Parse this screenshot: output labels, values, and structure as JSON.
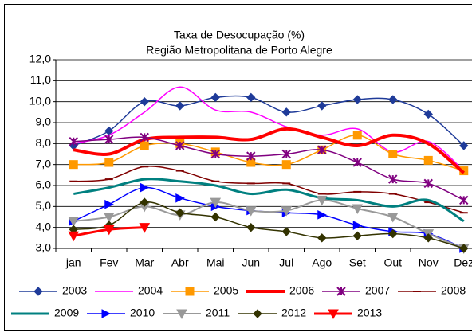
{
  "chart_data": {
    "type": "line",
    "title": "Taxa de Desocupação (%)",
    "subtitle": "Região Metropolitana de Porto Alegre",
    "categories": [
      "jan",
      "Fev",
      "Mar",
      "Abr",
      "Mai",
      "Jun",
      "Jul",
      "Ago",
      "Set",
      "Out",
      "Nov",
      "Dez"
    ],
    "ylim": [
      3,
      12
    ],
    "yticks": [
      {
        "value": 3,
        "label": "3,0"
      },
      {
        "value": 4,
        "label": "4,0"
      },
      {
        "value": 5,
        "label": "5,0"
      },
      {
        "value": 6,
        "label": "6,0"
      },
      {
        "value": 7,
        "label": "7,0"
      },
      {
        "value": 8,
        "label": "8,0"
      },
      {
        "value": 9,
        "label": "9,0"
      },
      {
        "value": 10,
        "label": "10,0"
      },
      {
        "value": 11,
        "label": "11,0"
      },
      {
        "value": 12,
        "label": "12,0"
      }
    ],
    "grid": true,
    "legend": "bottom",
    "series": [
      {
        "name": "2003",
        "color": "#1f3b99",
        "marker": "diamond",
        "line_width": 1.5,
        "values": [
          7.9,
          8.6,
          10.0,
          9.8,
          10.2,
          10.2,
          9.5,
          9.8,
          10.1,
          10.1,
          9.4,
          7.9
        ]
      },
      {
        "name": "2004",
        "color": "#ff00ff",
        "marker": "none",
        "line_width": 1.5,
        "values": [
          8.0,
          8.4,
          9.5,
          10.7,
          9.6,
          9.5,
          8.8,
          8.4,
          8.7,
          7.6,
          8.1,
          6.7
        ]
      },
      {
        "name": "2005",
        "color": "#ff9900",
        "marker": "square",
        "line_width": 1.5,
        "values": [
          7.0,
          7.1,
          7.9,
          8.0,
          7.6,
          7.1,
          7.0,
          7.7,
          8.4,
          7.5,
          7.2,
          6.7
        ]
      },
      {
        "name": "2006",
        "color": "#ff0000",
        "marker": "none",
        "line_width": 4,
        "values": [
          7.7,
          7.5,
          8.2,
          8.3,
          8.3,
          8.2,
          8.7,
          8.3,
          7.9,
          8.4,
          8.0,
          6.6
        ]
      },
      {
        "name": "2007",
        "color": "#800080",
        "marker": "star",
        "line_width": 1.5,
        "values": [
          8.1,
          8.2,
          8.3,
          7.9,
          7.5,
          7.4,
          7.5,
          7.7,
          7.1,
          6.3,
          6.1,
          5.3
        ]
      },
      {
        "name": "2008",
        "color": "#800000",
        "marker": "dash",
        "line_width": 1.5,
        "values": [
          6.2,
          6.3,
          6.9,
          6.7,
          6.2,
          6.1,
          6.1,
          5.6,
          5.7,
          5.6,
          5.2,
          4.7
        ]
      },
      {
        "name": "2009",
        "color": "#008080",
        "marker": "none",
        "line_width": 3,
        "values": [
          5.6,
          5.9,
          6.3,
          6.2,
          6.0,
          5.6,
          5.8,
          5.4,
          5.3,
          5.0,
          5.3,
          4.3
        ]
      },
      {
        "name": "2010",
        "color": "#0000ff",
        "marker": "triangle-right",
        "line_width": 1.5,
        "values": [
          4.3,
          5.1,
          5.9,
          5.4,
          5.0,
          4.8,
          4.7,
          4.6,
          4.1,
          3.8,
          3.7,
          3.0
        ]
      },
      {
        "name": "2011",
        "color": "#999999",
        "marker": "triangle-down",
        "line_width": 2,
        "values": [
          4.3,
          4.5,
          5.0,
          4.6,
          5.2,
          4.8,
          4.8,
          5.3,
          4.9,
          4.5,
          3.7,
          3.0
        ]
      },
      {
        "name": "2012",
        "color": "#333300",
        "marker": "diamond",
        "line_width": 1.5,
        "values": [
          3.9,
          4.1,
          5.2,
          4.7,
          4.5,
          4.0,
          3.8,
          3.5,
          3.6,
          3.7,
          3.5,
          3.0
        ]
      },
      {
        "name": "2013",
        "color": "#ff0000",
        "marker": "triangle-down",
        "line_width": 3,
        "values": [
          3.6,
          3.9,
          4.0,
          null,
          null,
          null,
          null,
          null,
          null,
          null,
          null,
          null
        ]
      }
    ]
  }
}
